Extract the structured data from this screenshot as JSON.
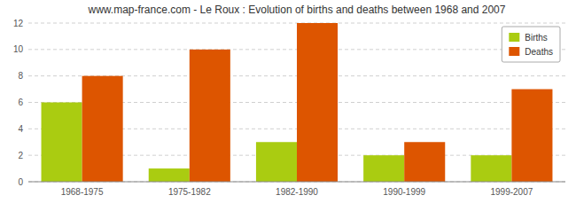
{
  "chart_data": {
    "type": "bar",
    "title": "www.map-france.com - Le Roux : Evolution of births and deaths between 1968 and 2007",
    "categories": [
      "1968-1975",
      "1975-1982",
      "1982-1990",
      "1990-1999",
      "1999-2007"
    ],
    "series": [
      {
        "name": "Births",
        "color": "#aacc11",
        "values": [
          6,
          1,
          3,
          2,
          2
        ]
      },
      {
        "name": "Deaths",
        "color": "#dd5500",
        "values": [
          8,
          10,
          12,
          3,
          7
        ]
      }
    ],
    "ylim": [
      0,
      12
    ],
    "yticks": [
      0,
      2,
      4,
      6,
      8,
      10,
      12
    ],
    "grid": true,
    "legend": "upper right"
  }
}
